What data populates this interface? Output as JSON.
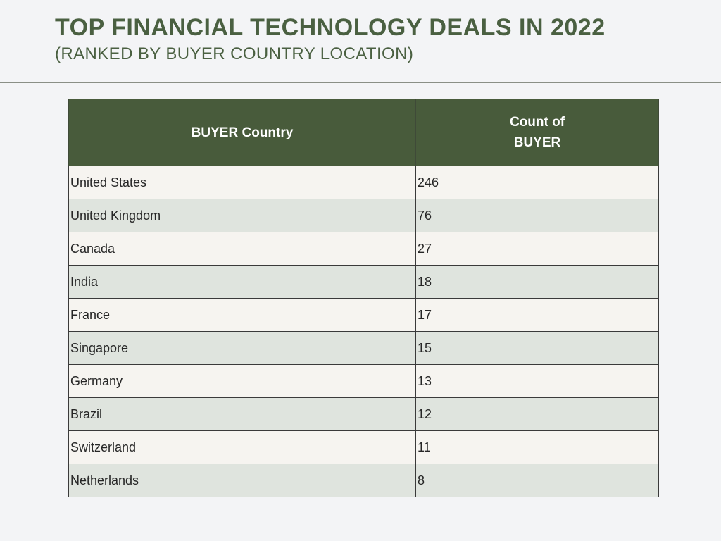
{
  "title": "TOP FINANCIAL TECHNOLOGY DEALS IN 2022",
  "subtitle": "(RANKED BY BUYER COUNTRY LOCATION)",
  "colors": {
    "accent": "#4a6041",
    "header_bg": "#485b3b",
    "row_light": "#f6f4f0",
    "row_shaded": "#dfe4de",
    "page_bg": "#f3f4f6"
  },
  "table": {
    "headers": [
      "BUYER Country",
      "Count of BUYER"
    ],
    "rows": [
      [
        "United States",
        "246"
      ],
      [
        "United Kingdom",
        "76"
      ],
      [
        "Canada",
        "27"
      ],
      [
        "India",
        "18"
      ],
      [
        "France",
        "17"
      ],
      [
        "Singapore",
        "15"
      ],
      [
        "Germany",
        "13"
      ],
      [
        "Brazil",
        "12"
      ],
      [
        "Switzerland",
        "11"
      ],
      [
        "Netherlands",
        "8"
      ]
    ]
  },
  "chart_data": {
    "type": "table",
    "title": "TOP FINANCIAL TECHNOLOGY DEALS IN 2022",
    "subtitle": "(RANKED BY BUYER COUNTRY LOCATION)",
    "columns": [
      "BUYER Country",
      "Count of BUYER"
    ],
    "categories": [
      "United States",
      "United Kingdom",
      "Canada",
      "India",
      "France",
      "Singapore",
      "Germany",
      "Brazil",
      "Switzerland",
      "Netherlands"
    ],
    "values": [
      246,
      76,
      27,
      18,
      17,
      15,
      13,
      12,
      11,
      8
    ]
  }
}
